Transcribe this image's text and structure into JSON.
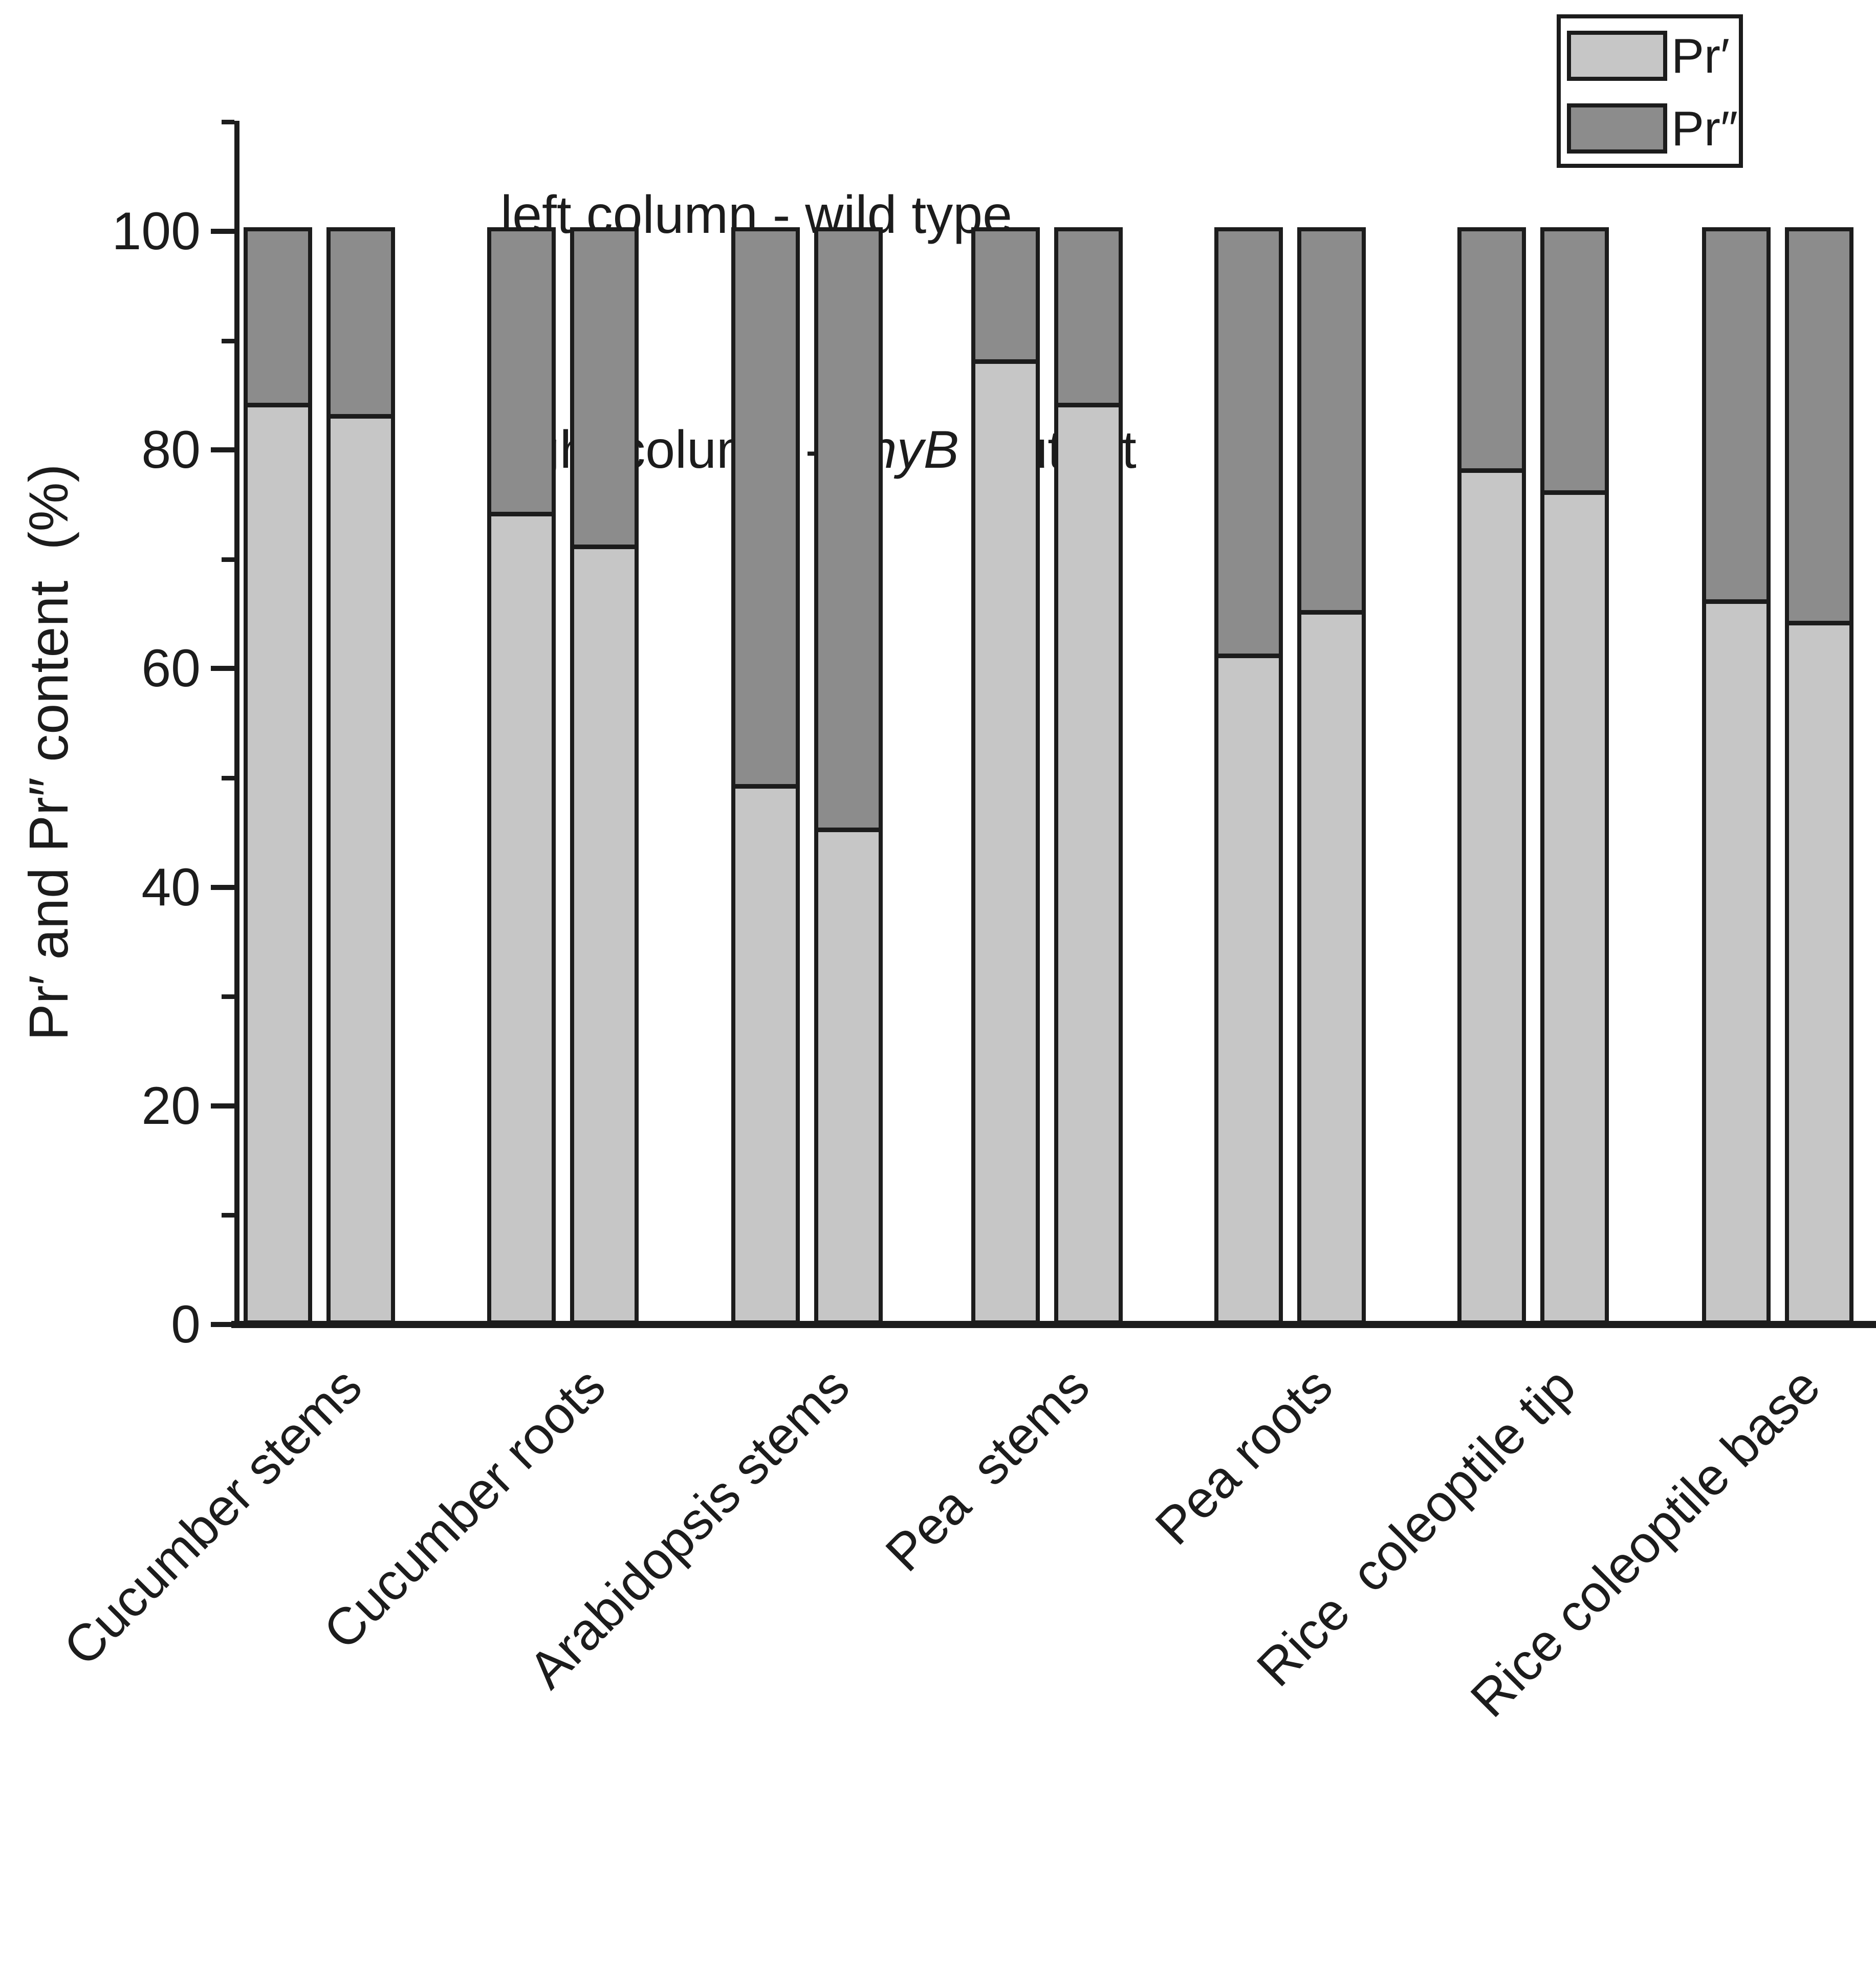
{
  "figure": {
    "heading": {
      "line1": "left column - wild type",
      "line2_prefix": "right column - ",
      "line2_italic": "phyB",
      "line2_suffix": " mutant"
    },
    "y_axis": {
      "label": "Pr′ and Pr″ content  (%)",
      "ticks": [
        0,
        20,
        40,
        60,
        80,
        100
      ],
      "range": [
        0,
        110
      ]
    },
    "legend": {
      "items": [
        {
          "label": "Pr′",
          "color": "#c6c6c6"
        },
        {
          "label": "Pr″",
          "color": "#8c8c8c"
        }
      ]
    }
  },
  "chart_data": {
    "type": "bar",
    "variant": "paired-stacked-100-percent",
    "pair_meaning": {
      "left_column": "wild type",
      "right_column": "phyB mutant"
    },
    "title": "left column - wild type; right column - phyB mutant",
    "categories": [
      "Cucumber stems",
      "Cucumber roots",
      "Arabidopsis stems",
      "Pea  stems",
      "Pea roots",
      "Rice  coleoptile tip",
      "Rice coleoptile base"
    ],
    "series": [
      {
        "name": "Pr′ — wild type (left column)",
        "color": "#c6c6c6",
        "values": [
          84,
          74,
          49,
          88,
          61,
          78,
          66
        ]
      },
      {
        "name": "Pr″ — wild type (left column)",
        "color": "#8c8c8c",
        "values": [
          16,
          26,
          51,
          12,
          39,
          22,
          34
        ]
      },
      {
        "name": "Pr′ — phyB mutant (right column)",
        "color": "#c6c6c6",
        "values": [
          83,
          71,
          45,
          84,
          65,
          76,
          64
        ]
      },
      {
        "name": "Pr″ — phyB mutant (right column)",
        "color": "#8c8c8c",
        "values": [
          17,
          29,
          55,
          16,
          35,
          24,
          36
        ]
      }
    ],
    "xlabel": "",
    "ylabel": "Pr′ and Pr″ content  (%)",
    "ylim": [
      0,
      110
    ],
    "yticks": [
      0,
      20,
      40,
      60,
      80,
      100
    ],
    "yminor_step": 10,
    "grid": false,
    "legend_entries": [
      "Pr′",
      "Pr″"
    ],
    "legend_position": "top-right"
  }
}
